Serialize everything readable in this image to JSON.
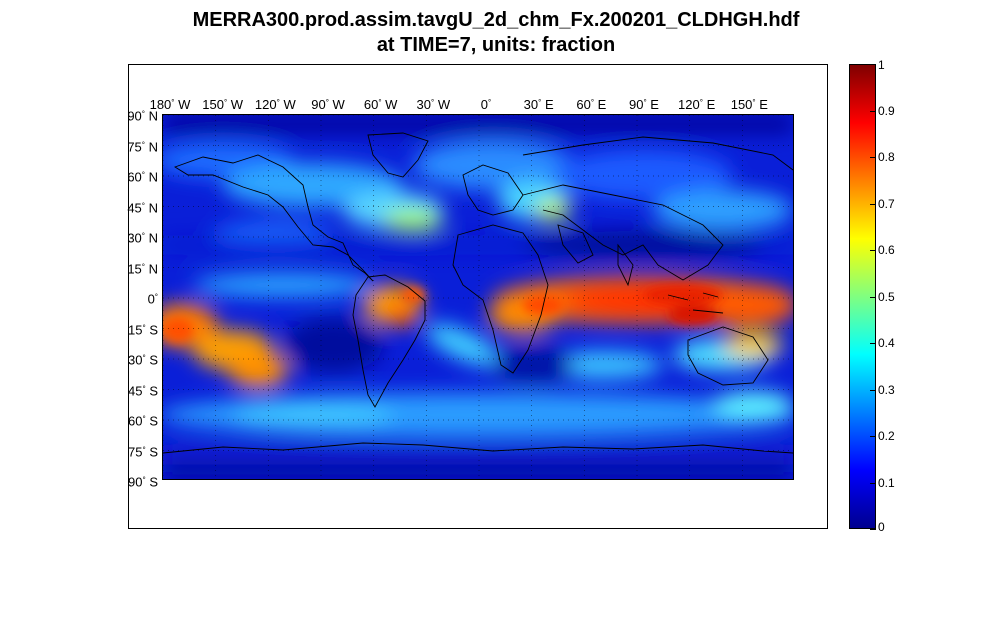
{
  "title": {
    "line1": "MERRA300.prod.assim.tavgU_2d_chm_Fx.200201_CLDHGH.hdf",
    "line2": "at TIME=7, units: fraction"
  },
  "map": {
    "projection": "equirectangular",
    "grid": "dotted",
    "lon_labels": [
      {
        "deg": "180",
        "hem": "W"
      },
      {
        "deg": "150",
        "hem": "W"
      },
      {
        "deg": "120",
        "hem": "W"
      },
      {
        "deg": "90",
        "hem": "W"
      },
      {
        "deg": "60",
        "hem": "W"
      },
      {
        "deg": "30",
        "hem": "W"
      },
      {
        "deg": "0",
        "hem": ""
      },
      {
        "deg": "30",
        "hem": "E"
      },
      {
        "deg": "60",
        "hem": "E"
      },
      {
        "deg": "90",
        "hem": "E"
      },
      {
        "deg": "120",
        "hem": "E"
      },
      {
        "deg": "150",
        "hem": "E"
      }
    ],
    "lat_labels": [
      {
        "deg": "90",
        "hem": "N"
      },
      {
        "deg": "75",
        "hem": "N"
      },
      {
        "deg": "60",
        "hem": "N"
      },
      {
        "deg": "45",
        "hem": "N"
      },
      {
        "deg": "30",
        "hem": "N"
      },
      {
        "deg": "15",
        "hem": "N"
      },
      {
        "deg": "0",
        "hem": ""
      },
      {
        "deg": "15",
        "hem": "S"
      },
      {
        "deg": "30",
        "hem": "S"
      },
      {
        "deg": "45",
        "hem": "S"
      },
      {
        "deg": "60",
        "hem": "S"
      },
      {
        "deg": "75",
        "hem": "S"
      },
      {
        "deg": "90",
        "hem": "S"
      }
    ],
    "lon_range": [
      -180,
      180
    ],
    "lat_range": [
      -90,
      90
    ]
  },
  "colorbar": {
    "colormap": "jet",
    "range": [
      0,
      1
    ],
    "ticks": [
      "0",
      "0.1",
      "0.2",
      "0.3",
      "0.4",
      "0.5",
      "0.6",
      "0.7",
      "0.8",
      "0.9",
      "1"
    ]
  },
  "colors": {
    "low": "#00008f",
    "high": "#800000",
    "coast": "#000000"
  }
}
